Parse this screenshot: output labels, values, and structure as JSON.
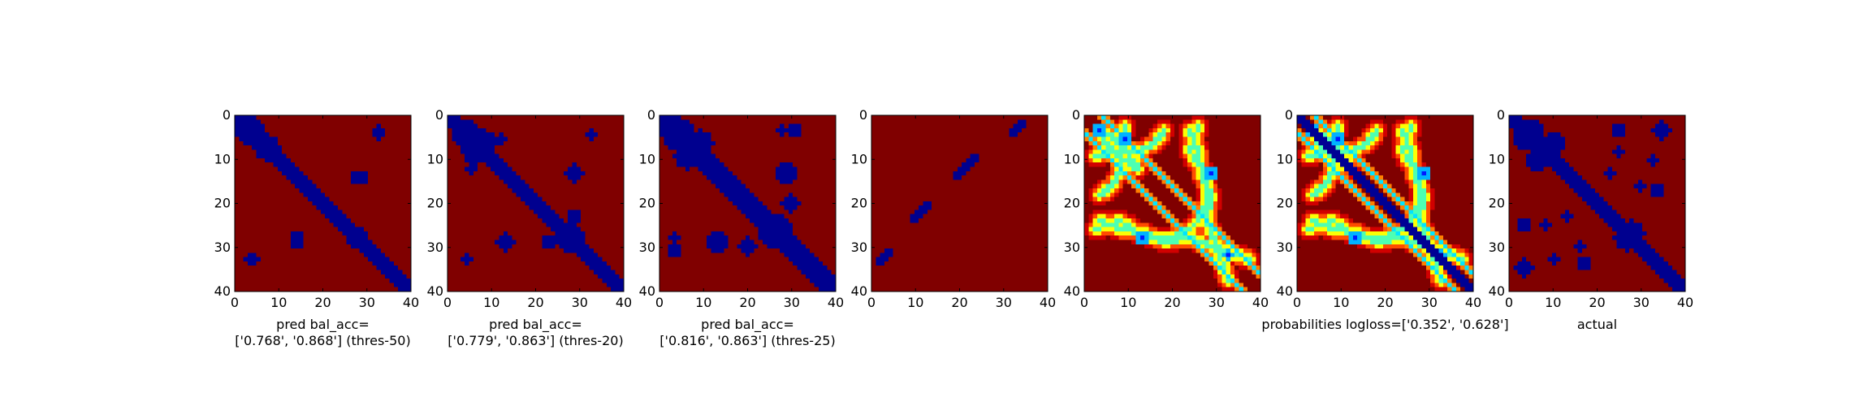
{
  "figure": {
    "panels": [
      {
        "id": "p1",
        "caption_lines": [
          "pred bal_acc=",
          "['0.768', '0.868'] (thres-50)"
        ]
      },
      {
        "id": "p2",
        "caption_lines": [
          "pred bal_acc=",
          "['0.779', '0.863'] (thres-20)"
        ]
      },
      {
        "id": "p3",
        "caption_lines": [
          "pred bal_acc=",
          "['0.816', '0.863'] (thres-25)"
        ]
      },
      {
        "id": "p4",
        "caption_lines": []
      },
      {
        "id": "p5",
        "caption_lines": []
      },
      {
        "id": "p6",
        "caption_lines": [
          "probabilities logloss=['0.352', '0.628']"
        ]
      },
      {
        "id": "p7",
        "caption_lines": [
          "actual"
        ]
      }
    ]
  },
  "chart_data": {
    "type": "heatmap",
    "panels": 7,
    "colormap": "jet",
    "matrix_size": 41,
    "x_ticks": [
      0,
      10,
      20,
      30,
      40
    ],
    "y_ticks": [
      0,
      10,
      20,
      30,
      40
    ],
    "xlim": [
      0,
      40
    ],
    "ylim": [
      40,
      0
    ],
    "colors": {
      "low": "#00008f",
      "high": "#800000"
    },
    "regions": {
      "p1": {
        "diag_halfwidth": 2.5,
        "blobs": [
          {
            "cx": 3,
            "cy": 3,
            "r": 3.2
          },
          {
            "cx": 7,
            "cy": 7,
            "r": 3.0
          },
          {
            "cx": 9,
            "cy": 9,
            "r": 2.2
          },
          {
            "cx": 28,
            "cy": 28,
            "r": 2.8
          },
          {
            "cx": 30,
            "cy": 30,
            "r": 2.2
          },
          {
            "cx": 14,
            "cy": 28,
            "r": 1.6
          },
          {
            "cx": 29,
            "cy": 14,
            "r": 1.6
          },
          {
            "cx": 33,
            "cy": 3,
            "r": 1.0
          },
          {
            "cx": 4,
            "cy": 33,
            "r": 1.0
          }
        ]
      },
      "p2": {
        "diag_halfwidth": 2.8,
        "blobs": [
          {
            "cx": 4,
            "cy": 4,
            "r": 3.6
          },
          {
            "cx": 8,
            "cy": 6,
            "r": 3.0
          },
          {
            "cx": 28,
            "cy": 28,
            "r": 3.2
          },
          {
            "cx": 13,
            "cy": 29,
            "r": 2.0
          },
          {
            "cx": 29,
            "cy": 13,
            "r": 2.0
          },
          {
            "cx": 23,
            "cy": 29,
            "r": 1.5
          },
          {
            "cx": 29,
            "cy": 23,
            "r": 1.5
          },
          {
            "cx": 12,
            "cy": 5,
            "r": 1.2
          },
          {
            "cx": 4,
            "cy": 33,
            "r": 1.2
          }
        ]
      },
      "p3": {
        "diag_halfwidth": 3.0,
        "blobs": [
          {
            "cx": 4,
            "cy": 4,
            "r": 4.0
          },
          {
            "cx": 9,
            "cy": 6,
            "r": 3.0
          },
          {
            "cx": 27,
            "cy": 26,
            "r": 3.6
          },
          {
            "cx": 13,
            "cy": 29,
            "r": 2.5
          },
          {
            "cx": 29,
            "cy": 13,
            "r": 2.5
          },
          {
            "cx": 20,
            "cy": 30,
            "r": 2.0
          },
          {
            "cx": 30,
            "cy": 20,
            "r": 2.0
          },
          {
            "cx": 28,
            "cy": 3,
            "r": 1.3
          },
          {
            "cx": 3,
            "cy": 31,
            "r": 1.8
          }
        ]
      },
      "p4": {
        "segments": [
          {
            "x1": 9,
            "y1": 24,
            "x2": 13,
            "y2": 20
          },
          {
            "x1": 19,
            "y1": 14,
            "x2": 24,
            "y2": 9
          },
          {
            "x1": 32,
            "y1": 4,
            "x2": 35,
            "y2": 1
          },
          {
            "x1": 1,
            "y1": 34,
            "x2": 4,
            "y2": 31
          }
        ]
      },
      "p5": {
        "diag_halfwidth": 1.2,
        "diag_offset": 4
      },
      "p6": {
        "diag_halfwidth": 1.4,
        "diag_offset": 0
      },
      "p7": {
        "diag_halfwidth": 2.6,
        "blobs": [
          {
            "cx": 4,
            "cy": 4,
            "r": 3.8
          },
          {
            "cx": 10,
            "cy": 6,
            "r": 2.8
          },
          {
            "cx": 28,
            "cy": 27,
            "r": 3.0
          },
          {
            "cx": 25,
            "cy": 3,
            "r": 1.6
          },
          {
            "cx": 34,
            "cy": 3,
            "r": 1.2
          },
          {
            "cx": 23,
            "cy": 13,
            "r": 1.4
          },
          {
            "cx": 30,
            "cy": 16,
            "r": 1.2
          },
          {
            "cx": 3,
            "cy": 35,
            "r": 2.0
          },
          {
            "cx": 17,
            "cy": 34,
            "r": 1.8
          },
          {
            "cx": 10,
            "cy": 33,
            "r": 1.3
          },
          {
            "cx": 8,
            "cy": 25,
            "r": 1.0
          }
        ]
      }
    }
  }
}
